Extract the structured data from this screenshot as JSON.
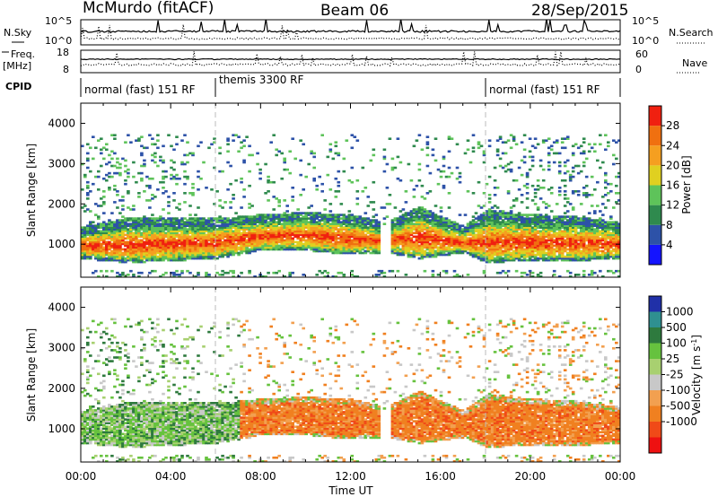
{
  "header": {
    "station": "McMurdo (fitACF)",
    "beam": "Beam 06",
    "date": "28/Sep/2015"
  },
  "top_panel": {
    "left_label_sky": "N.Sky",
    "left_label_freq": "Freq.",
    "left_label_freq_unit": "[MHz]",
    "left_label_cpid": "CPID",
    "right_label_search": "N.Search",
    "right_label_nave": "Nave",
    "noise_ticks": [
      "10^5",
      "10^0"
    ],
    "freq_ticks": [
      "18",
      "8"
    ],
    "nave_ticks": [
      "60",
      "0"
    ],
    "cpid_segments": [
      {
        "label": "normal (fast) 151 RF",
        "start_hour": 0,
        "end_hour": 6
      },
      {
        "label": "themis 3300 RF",
        "start_hour": 6,
        "end_hour": 18
      },
      {
        "label": "normal (fast) 151 RF",
        "start_hour": 18,
        "end_hour": 24
      }
    ]
  },
  "colors": {
    "power": [
      "#1414ff",
      "#2d52a8",
      "#2f8a4e",
      "#5ec35a",
      "#e0d020",
      "#f59f20",
      "#f07010",
      "#f02010"
    ],
    "velocity": [
      "#ee1111",
      "#f04a18",
      "#f08020",
      "#f2a050",
      "#c8c8c8",
      "#a8d070",
      "#66c23e",
      "#2e7a3e",
      "#2f9090",
      "#2030a8"
    ]
  },
  "chart_data": [
    {
      "type": "heatmap",
      "name": "Power",
      "xlabel": "",
      "ylabel": "Slant Range [km]",
      "xlim": [
        0,
        24
      ],
      "ylim": [
        180,
        4500
      ],
      "y_ticks": [
        1000,
        2000,
        3000,
        4000
      ],
      "colorbar": {
        "label": "Power [dB]",
        "ticks": [
          "4",
          "8",
          "12",
          "16",
          "20",
          "24",
          "28"
        ],
        "range": [
          0,
          30
        ]
      },
      "main_echo_band": [
        {
          "hour": 0,
          "lower_km": 700,
          "upper_km": 1300
        },
        {
          "hour": 2,
          "lower_km": 600,
          "upper_km": 1500
        },
        {
          "hour": 4,
          "lower_km": 650,
          "upper_km": 1500
        },
        {
          "hour": 6,
          "lower_km": 700,
          "upper_km": 1500
        },
        {
          "hour": 8,
          "lower_km": 900,
          "upper_km": 1600
        },
        {
          "hour": 10,
          "lower_km": 900,
          "upper_km": 1650
        },
        {
          "hour": 12,
          "lower_km": 800,
          "upper_km": 1600
        },
        {
          "hour": 13.5,
          "lower_km": 850,
          "upper_km": 1400
        },
        {
          "hour": 15,
          "lower_km": 700,
          "upper_km": 1800
        },
        {
          "hour": 17,
          "lower_km": 850,
          "upper_km": 1300
        },
        {
          "hour": 18,
          "lower_km": 600,
          "upper_km": 1700
        },
        {
          "hour": 20,
          "lower_km": 650,
          "upper_km": 1600
        },
        {
          "hour": 22,
          "lower_km": 650,
          "upper_km": 1550
        },
        {
          "hour": 24,
          "lower_km": 700,
          "upper_km": 1400
        }
      ]
    },
    {
      "type": "heatmap",
      "name": "Velocity",
      "xlabel": "Time UT",
      "ylabel": "Slant Range [km]",
      "xlim": [
        0,
        24
      ],
      "ylim": [
        180,
        4500
      ],
      "x_ticks": [
        "00:00",
        "04:00",
        "08:00",
        "12:00",
        "16:00",
        "20:00",
        "00:00"
      ],
      "y_ticks": [
        1000,
        2000,
        3000,
        4000
      ],
      "colorbar": {
        "label": "Velocity [m s",
        "label_sup": "-1",
        "label_end": "]",
        "ticks": [
          "1000",
          "500",
          "100",
          "25",
          "-25",
          "-100",
          "-500",
          "-1000"
        ]
      }
    }
  ]
}
